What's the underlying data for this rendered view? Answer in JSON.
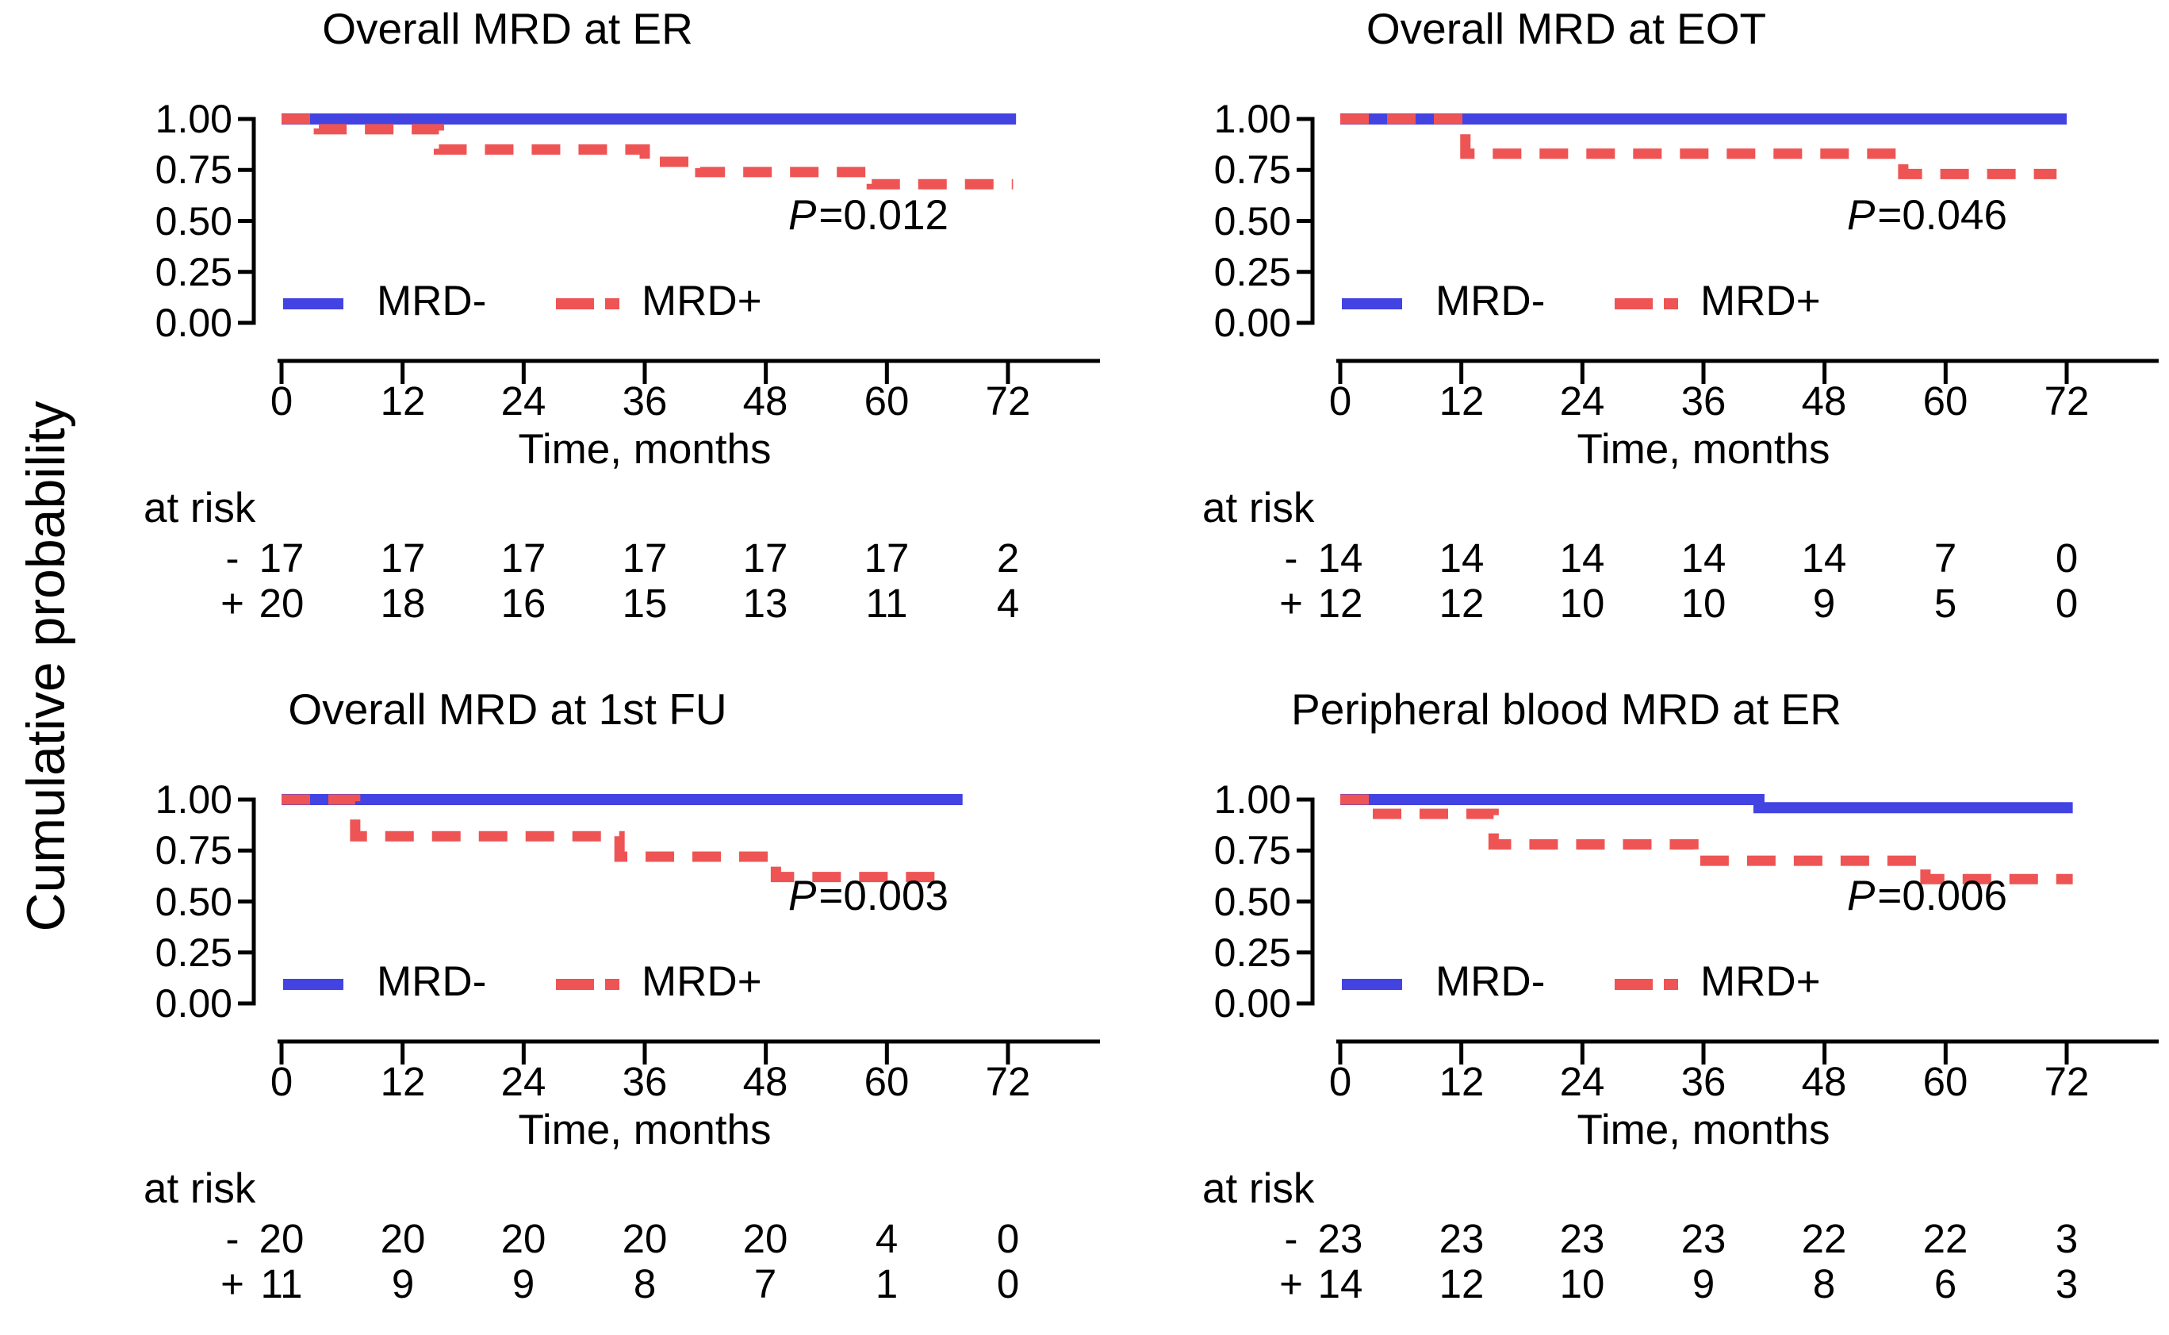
{
  "figure": {
    "y_axis_label": "Cumulative probability",
    "background": "#ffffff",
    "colors": {
      "mrd_negative": "#4343E2",
      "mrd_positive": "#EE5454",
      "axis": "#000000"
    }
  },
  "chart_data": [
    {
      "type": "line",
      "title": "Overall MRD at ER",
      "xlabel": "Time, months",
      "x_ticks": [
        "0",
        "12",
        "24",
        "36",
        "48",
        "60",
        "72"
      ],
      "y_ticks": [
        "1.00",
        "0.75",
        "0.50",
        "0.25",
        "0.00"
      ],
      "xlim": [
        0,
        81
      ],
      "ylim": [
        0,
        1
      ],
      "grid": false,
      "legend_position": "bottom-left",
      "p_symbol": "P",
      "p_value": "=0.012",
      "legend": [
        "MRD-",
        "MRD+"
      ],
      "series": [
        {
          "name": "MRD-",
          "color": "#4343E2",
          "style": "solid",
          "steps": [
            [
              0,
              1.0
            ]
          ],
          "end": 72.8
        },
        {
          "name": "MRD+",
          "color": "#EE5454",
          "style": "dashed",
          "steps": [
            [
              0,
              1.0
            ],
            [
              3.7,
              0.95
            ],
            [
              15.6,
              0.85
            ],
            [
              36,
              0.79
            ],
            [
              41.5,
              0.74
            ],
            [
              58.5,
              0.68
            ]
          ],
          "end": 72.5
        }
      ],
      "at_risk": {
        "label": "at risk",
        "rows": [
          {
            "sign": "-",
            "counts": [
              "17",
              "17",
              "17",
              "17",
              "17",
              "17",
              "2"
            ]
          },
          {
            "sign": "+",
            "counts": [
              "20",
              "18",
              "16",
              "15",
              "13",
              "11",
              "4"
            ]
          }
        ]
      }
    },
    {
      "type": "line",
      "title": "Overall MRD at EOT",
      "xlabel": "Time, months",
      "x_ticks": [
        "0",
        "12",
        "24",
        "36",
        "48",
        "60",
        "72"
      ],
      "y_ticks": [
        "1.00",
        "0.75",
        "0.50",
        "0.25",
        "0.00"
      ],
      "xlim": [
        0,
        81
      ],
      "ylim": [
        0,
        1
      ],
      "grid": false,
      "legend_position": "bottom-left",
      "p_symbol": "P",
      "p_value": "=0.046",
      "legend": [
        "MRD-",
        "MRD+"
      ],
      "series": [
        {
          "name": "MRD-",
          "color": "#4343E2",
          "style": "solid",
          "steps": [
            [
              0,
              1.0
            ]
          ],
          "end": 72.0
        },
        {
          "name": "MRD+",
          "color": "#EE5454",
          "style": "dashed",
          "steps": [
            [
              0,
              1.0
            ],
            [
              12.4,
              0.83
            ],
            [
              55.8,
              0.73
            ]
          ],
          "end": 71.0
        }
      ],
      "at_risk": {
        "label": "at risk",
        "rows": [
          {
            "sign": "-",
            "counts": [
              "14",
              "14",
              "14",
              "14",
              "14",
              "7",
              "0"
            ]
          },
          {
            "sign": "+",
            "counts": [
              "12",
              "12",
              "10",
              "10",
              "9",
              "5",
              "0"
            ]
          }
        ]
      }
    },
    {
      "type": "line",
      "title": "Overall MRD at 1st FU",
      "xlabel": "Time, months",
      "x_ticks": [
        "0",
        "12",
        "24",
        "36",
        "48",
        "60",
        "72"
      ],
      "y_ticks": [
        "1.00",
        "0.75",
        "0.50",
        "0.25",
        "0.00"
      ],
      "xlim": [
        0,
        81
      ],
      "ylim": [
        0,
        1
      ],
      "grid": false,
      "legend_position": "bottom-left",
      "p_symbol": "P",
      "p_value": "=0.003",
      "legend": [
        "MRD-",
        "MRD+"
      ],
      "series": [
        {
          "name": "MRD-",
          "color": "#4343E2",
          "style": "solid",
          "steps": [
            [
              0,
              1.0
            ]
          ],
          "end": 67.5
        },
        {
          "name": "MRD+",
          "color": "#EE5454",
          "style": "dashed",
          "steps": [
            [
              0,
              1.0
            ],
            [
              7.3,
              0.82
            ],
            [
              33.5,
              0.72
            ],
            [
              49,
              0.62
            ]
          ],
          "end": 65.0
        }
      ],
      "at_risk": {
        "label": "at risk",
        "rows": [
          {
            "sign": "-",
            "counts": [
              "20",
              "20",
              "20",
              "20",
              "20",
              "4",
              "0"
            ]
          },
          {
            "sign": "+",
            "counts": [
              "11",
              "9",
              "9",
              "8",
              "7",
              "1",
              "0"
            ]
          }
        ]
      }
    },
    {
      "type": "line",
      "title": "Peripheral blood MRD at ER",
      "xlabel": "Time, months",
      "x_ticks": [
        "0",
        "12",
        "24",
        "36",
        "48",
        "60",
        "72"
      ],
      "y_ticks": [
        "1.00",
        "0.75",
        "0.50",
        "0.25",
        "0.00"
      ],
      "xlim": [
        0,
        81
      ],
      "ylim": [
        0,
        1
      ],
      "grid": false,
      "legend_position": "bottom-left",
      "p_symbol": "P",
      "p_value": "=0.006",
      "legend": [
        "MRD-",
        "MRD+"
      ],
      "series": [
        {
          "name": "MRD-",
          "color": "#4343E2",
          "style": "solid",
          "steps": [
            [
              0,
              1.0
            ],
            [
              41.5,
              0.96
            ]
          ],
          "end": 72.6
        },
        {
          "name": "MRD+",
          "color": "#EE5454",
          "style": "dashed",
          "steps": [
            [
              0,
              1.0
            ],
            [
              3.2,
              0.93
            ],
            [
              15.2,
              0.78
            ],
            [
              35,
              0.7
            ],
            [
              58,
              0.61
            ]
          ],
          "end": 72.6
        }
      ],
      "at_risk": {
        "label": "at risk",
        "rows": [
          {
            "sign": "-",
            "counts": [
              "23",
              "23",
              "23",
              "23",
              "22",
              "22",
              "3"
            ]
          },
          {
            "sign": "+",
            "counts": [
              "14",
              "12",
              "10",
              "9",
              "8",
              "6",
              "3"
            ]
          }
        ]
      }
    }
  ]
}
